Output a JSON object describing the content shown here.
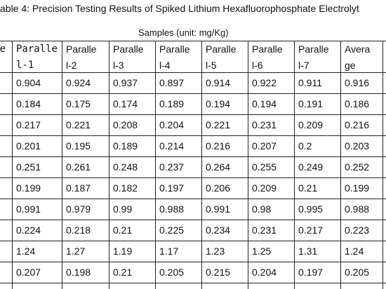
{
  "title": "able 4: Precision Testing Results of Spiked Lithium Hexafluorophosphate Electrolyt",
  "subtitle": "Samples (unit: mg/Kg)",
  "table": {
    "header": [
      "e",
      [
        "Paralle",
        "l-1"
      ],
      [
        "Paralle",
        "l-2"
      ],
      [
        "Paralle",
        "l-3"
      ],
      [
        "Paralle",
        "l-4"
      ],
      [
        "Paralle",
        "l-5"
      ],
      [
        "Paralle",
        "l-6"
      ],
      [
        "Paralle",
        "l-7"
      ],
      [
        "Avera",
        "ge"
      ]
    ],
    "rows": [
      [
        0.904,
        0.924,
        0.937,
        0.897,
        0.914,
        0.922,
        0.911,
        0.916
      ],
      [
        0.184,
        0.175,
        0.174,
        0.189,
        0.194,
        0.194,
        0.191,
        0.186
      ],
      [
        0.217,
        0.221,
        0.208,
        0.204,
        0.221,
        0.231,
        0.209,
        0.216
      ],
      [
        0.201,
        0.195,
        0.189,
        0.214,
        0.216,
        0.207,
        0.2,
        0.203
      ],
      [
        0.251,
        0.261,
        0.248,
        0.237,
        0.264,
        0.255,
        0.249,
        0.252
      ],
      [
        0.199,
        0.187,
        0.182,
        0.197,
        0.206,
        0.209,
        0.21,
        0.199
      ],
      [
        0.991,
        0.979,
        0.99,
        0.988,
        0.991,
        0.98,
        0.995,
        0.988
      ],
      [
        0.224,
        0.218,
        0.21,
        0.225,
        0.234,
        0.231,
        0.217,
        0.223
      ],
      [
        1.24,
        1.27,
        1.19,
        1.17,
        1.23,
        1.25,
        1.31,
        1.24
      ],
      [
        0.207,
        0.198,
        0.21,
        0.205,
        0.215,
        0.204,
        0.197,
        0.205
      ]
    ]
  }
}
